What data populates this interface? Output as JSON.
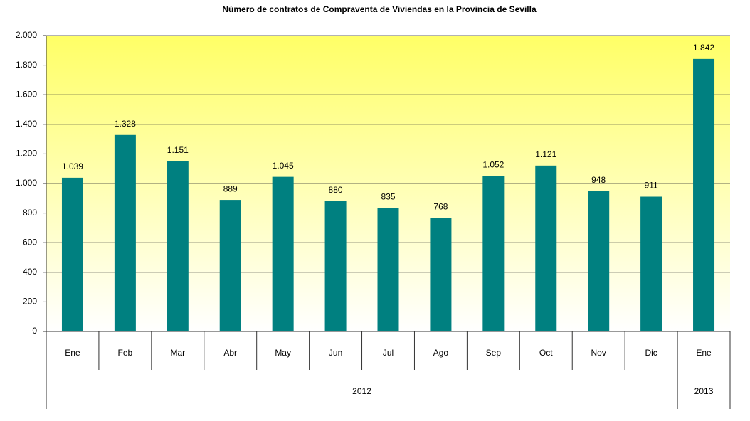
{
  "chart_data": {
    "type": "bar",
    "title": "Número de contratos de Compraventa de Viviendas en la Provincia de Sevilla",
    "categories": [
      "Ene",
      "Feb",
      "Mar",
      "Abr",
      "May",
      "Jun",
      "Jul",
      "Ago",
      "Sep",
      "Oct",
      "Nov",
      "Dic",
      "Ene"
    ],
    "category_groups": [
      "2012",
      "2012",
      "2012",
      "2012",
      "2012",
      "2012",
      "2012",
      "2012",
      "2012",
      "2012",
      "2012",
      "2012",
      "2013"
    ],
    "values": [
      1039,
      1328,
      1151,
      889,
      1045,
      880,
      835,
      768,
      1052,
      1121,
      948,
      911,
      1842
    ],
    "value_labels": [
      "1.039",
      "1.328",
      "1.151",
      "889",
      "1.045",
      "880",
      "835",
      "768",
      "1.052",
      "1.121",
      "948",
      "911",
      "1.842"
    ],
    "color": "#008080",
    "ylim": [
      0,
      2000
    ],
    "yticks": [
      0,
      200,
      400,
      600,
      800,
      {
        "value": 1000,
        "label": "1.000"
      },
      {
        "value": 1200,
        "label": "1.200"
      },
      {
        "value": 1400,
        "label": "1.400"
      },
      {
        "value": 1600,
        "label": "1.600"
      },
      {
        "value": 1800,
        "label": "1.800"
      },
      {
        "value": 2000,
        "label": "2.000"
      }
    ],
    "grid": true
  }
}
